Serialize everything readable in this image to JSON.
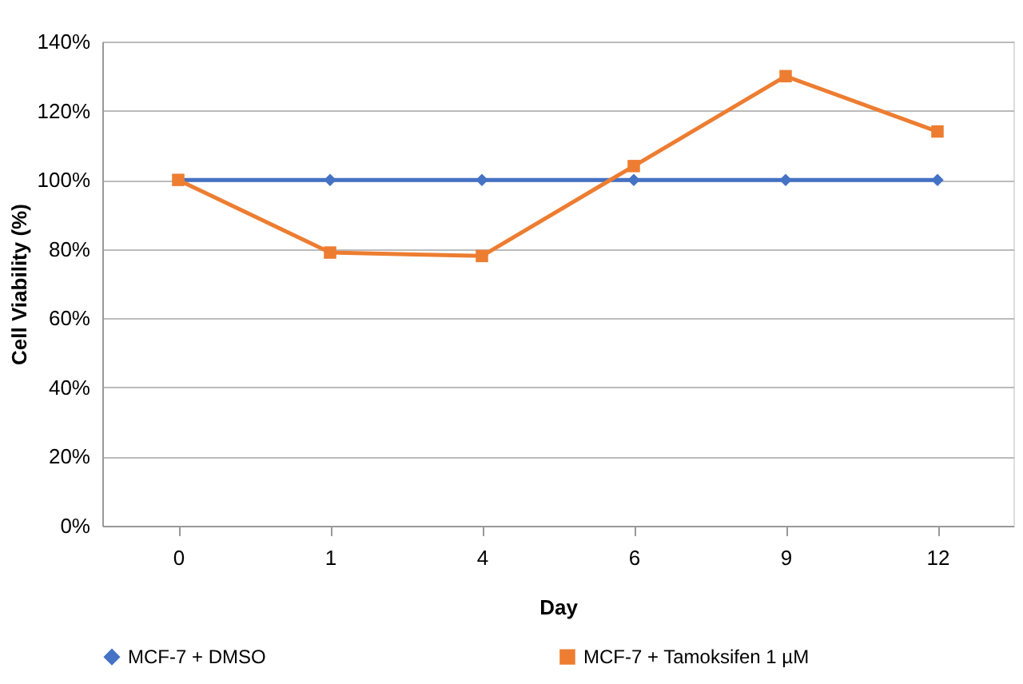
{
  "chart_data": {
    "type": "line",
    "xlabel": "Day",
    "ylabel": "Cell Viability  (%)",
    "categories": [
      "0",
      "1",
      "4",
      "6",
      "9",
      "12"
    ],
    "series": [
      {
        "name": "MCF-7 + DMSO",
        "color": "#4472c4",
        "marker": "diamond",
        "values": [
          100,
          100,
          100,
          100,
          100,
          100
        ]
      },
      {
        "name": "MCF-7 + Tamoksifen 1 µM",
        "color": "#ed7d31",
        "marker": "square",
        "values": [
          100,
          79,
          78,
          104,
          130,
          114
        ]
      }
    ],
    "ylim": [
      0,
      140
    ],
    "yticks": [
      {
        "value": 0,
        "label": "0%"
      },
      {
        "value": 20,
        "label": "20%"
      },
      {
        "value": 40,
        "label": "40%"
      },
      {
        "value": 60,
        "label": "60%"
      },
      {
        "value": 80,
        "label": "80%"
      },
      {
        "value": 100,
        "label": "100%"
      },
      {
        "value": 120,
        "label": "120%"
      },
      {
        "value": 140,
        "label": "140%"
      }
    ],
    "grid": "y",
    "legend": "bottom",
    "line_style": "solid"
  }
}
